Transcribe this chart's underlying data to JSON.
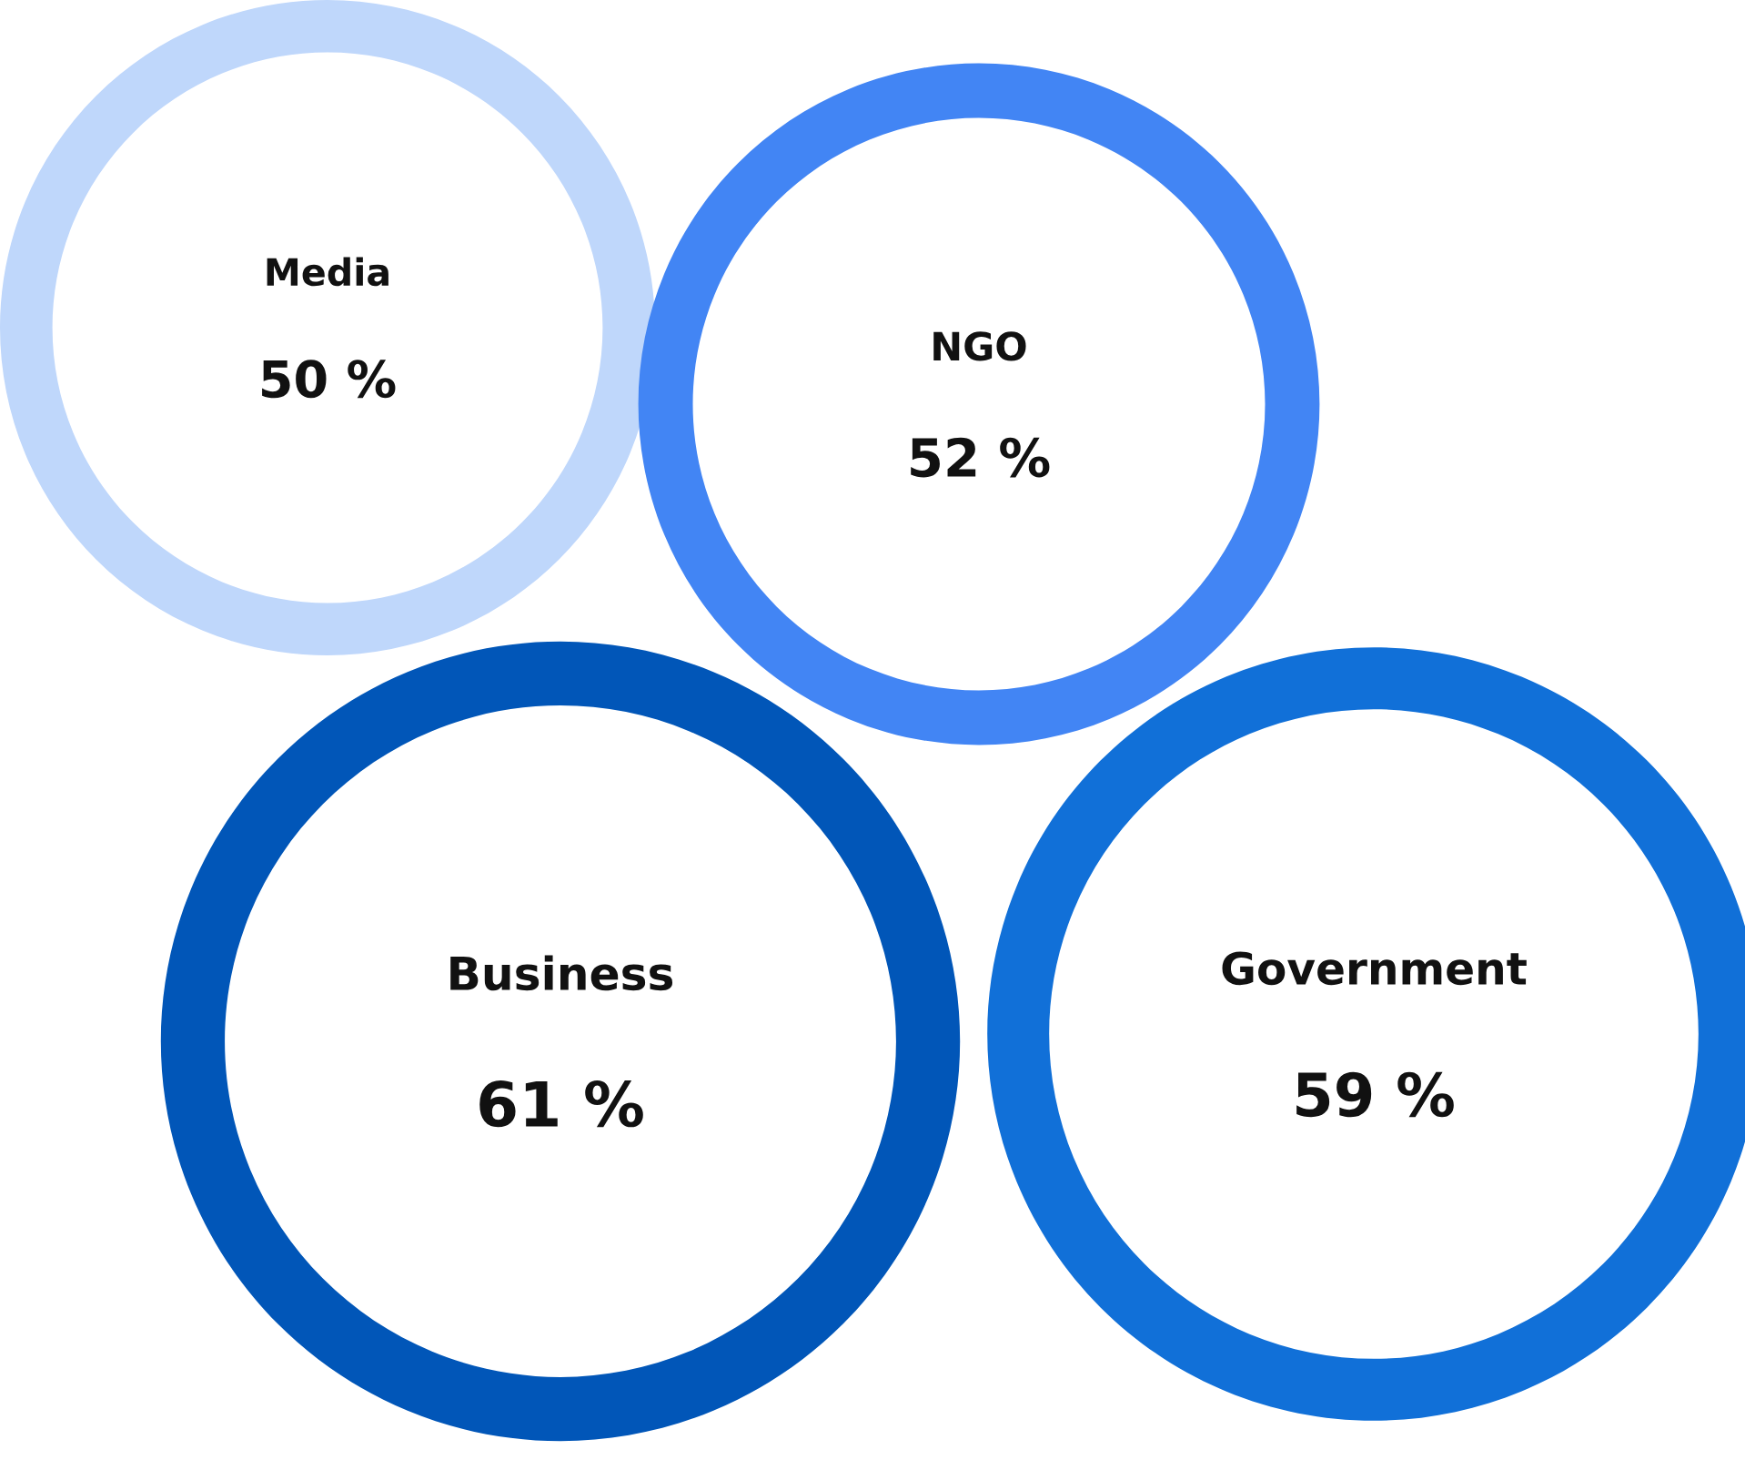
{
  "chart_data": {
    "type": "other",
    "categories": [
      "Media",
      "NGO",
      "Business",
      "Government"
    ],
    "values": [
      50,
      52,
      61,
      59
    ],
    "value_labels": [
      "50 %",
      "52 %",
      "61 %",
      "59 %"
    ],
    "colors": [
      "#bfd7fb",
      "#4285f4",
      "#0156b8",
      "#1170d8"
    ]
  }
}
